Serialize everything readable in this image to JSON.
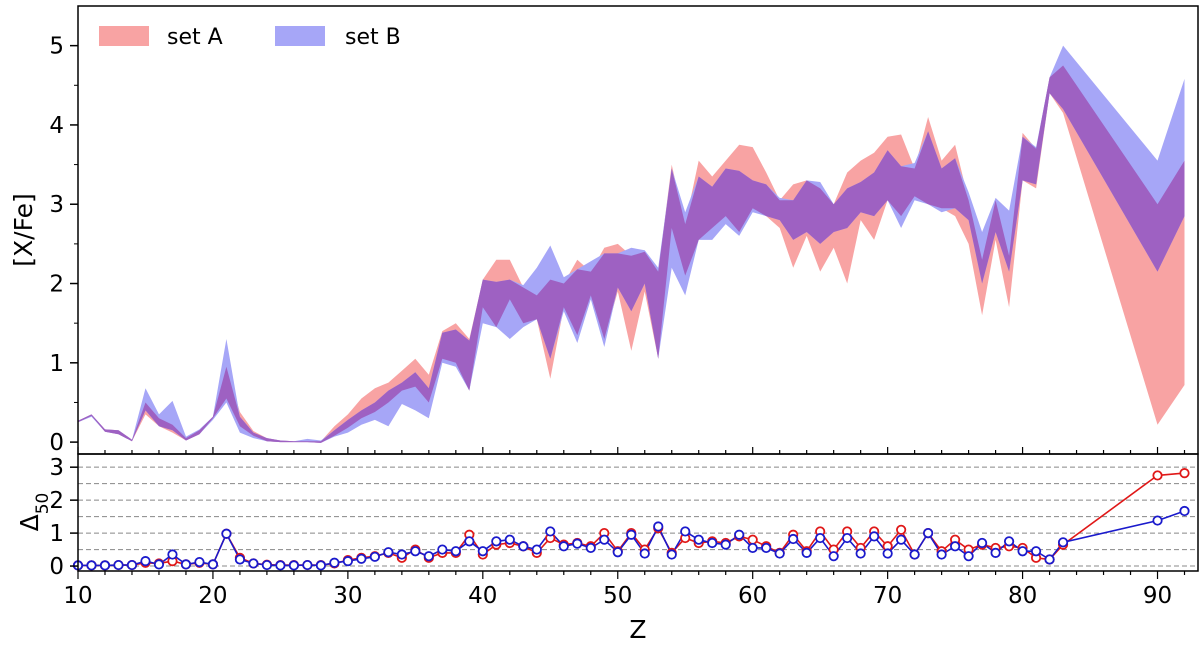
{
  "chart_data": [
    {
      "type": "area",
      "panel": "top",
      "ylabel": "[X/Fe]",
      "xlim": [
        10,
        93
      ],
      "ylim": [
        -0.15,
        5.5
      ],
      "yticks": [
        "0",
        "1",
        "2",
        "3",
        "4",
        "5"
      ],
      "legend_position": "top-left",
      "legend": [
        {
          "name": "set A",
          "color": "#f8a3a3"
        },
        {
          "name": "set B",
          "color": "#a6a6f7"
        }
      ],
      "overlap_color": "#9e61c2",
      "series": [
        {
          "name": "set A",
          "color": "#f8a3a3",
          "x": [
            10,
            11,
            12,
            13,
            14,
            15,
            16,
            17,
            18,
            19,
            20,
            21,
            22,
            23,
            24,
            25,
            26,
            27,
            28,
            29,
            30,
            31,
            32,
            33,
            34,
            35,
            36,
            37,
            38,
            39,
            40,
            41,
            42,
            43,
            44,
            45,
            46,
            47,
            48,
            49,
            50,
            51,
            52,
            53,
            54,
            55,
            56,
            57,
            58,
            59,
            60,
            61,
            62,
            63,
            64,
            65,
            66,
            67,
            68,
            69,
            70,
            71,
            72,
            73,
            74,
            75,
            76,
            77,
            78,
            79,
            80,
            81,
            82,
            83,
            90,
            92
          ],
          "lower": [
            0.25,
            0.33,
            0.13,
            0.1,
            0.01,
            0.35,
            0.2,
            0.12,
            0.02,
            0.1,
            0.3,
            0.55,
            0.2,
            0.08,
            0.01,
            0.0,
            0.0,
            0.0,
            -0.01,
            0.08,
            0.18,
            0.3,
            0.38,
            0.5,
            0.65,
            0.7,
            0.5,
            1.05,
            1.0,
            0.65,
            1.7,
            1.45,
            1.8,
            1.5,
            1.55,
            0.8,
            1.7,
            1.35,
            1.85,
            1.3,
            1.9,
            1.15,
            1.9,
            1.05,
            2.7,
            2.1,
            2.55,
            2.7,
            2.85,
            2.65,
            2.95,
            2.85,
            2.7,
            2.2,
            2.6,
            2.15,
            2.45,
            2.0,
            2.8,
            2.55,
            3.05,
            2.85,
            3.1,
            3.0,
            2.95,
            2.85,
            2.5,
            1.6,
            2.55,
            1.7,
            3.3,
            3.2,
            4.4,
            4.15,
            0.22,
            0.72
          ],
          "upper": [
            0.27,
            0.35,
            0.16,
            0.15,
            0.03,
            0.5,
            0.3,
            0.22,
            0.05,
            0.15,
            0.32,
            0.95,
            0.38,
            0.14,
            0.05,
            0.02,
            0.01,
            0.01,
            0.01,
            0.2,
            0.35,
            0.55,
            0.68,
            0.75,
            0.9,
            1.05,
            0.85,
            1.4,
            1.5,
            1.3,
            2.05,
            2.3,
            2.3,
            1.95,
            1.85,
            2.05,
            2.0,
            2.3,
            2.15,
            2.45,
            2.5,
            2.35,
            2.4,
            2.15,
            3.5,
            2.75,
            3.55,
            3.35,
            3.55,
            3.75,
            3.72,
            3.4,
            3.05,
            3.25,
            3.3,
            3.2,
            3.0,
            3.4,
            3.55,
            3.65,
            3.85,
            3.88,
            3.45,
            4.1,
            3.55,
            3.75,
            3.05,
            2.3,
            3.05,
            2.35,
            3.9,
            3.7,
            4.6,
            4.75,
            3.0,
            3.55
          ]
        },
        {
          "name": "set B",
          "color": "#a6a6f7",
          "x": [
            10,
            11,
            12,
            13,
            14,
            15,
            16,
            17,
            18,
            19,
            20,
            21,
            22,
            23,
            24,
            25,
            26,
            27,
            28,
            29,
            30,
            31,
            32,
            33,
            34,
            35,
            36,
            37,
            38,
            39,
            40,
            41,
            42,
            43,
            44,
            45,
            46,
            47,
            48,
            49,
            50,
            51,
            52,
            53,
            54,
            55,
            56,
            57,
            58,
            59,
            60,
            61,
            62,
            63,
            64,
            65,
            66,
            67,
            68,
            69,
            70,
            71,
            72,
            73,
            74,
            75,
            76,
            77,
            78,
            79,
            80,
            81,
            82,
            83,
            90,
            92
          ],
          "lower": [
            0.25,
            0.32,
            0.13,
            0.1,
            0.01,
            0.4,
            0.2,
            0.15,
            0.02,
            0.1,
            0.28,
            0.5,
            0.12,
            0.05,
            0.01,
            0.0,
            0.0,
            0.0,
            -0.01,
            0.07,
            0.12,
            0.22,
            0.28,
            0.2,
            0.48,
            0.4,
            0.3,
            1.0,
            0.95,
            0.65,
            1.5,
            1.45,
            1.3,
            1.45,
            1.55,
            1.05,
            1.65,
            1.25,
            1.8,
            1.2,
            1.95,
            1.65,
            2.0,
            1.05,
            2.2,
            1.85,
            2.55,
            2.55,
            2.75,
            2.6,
            2.9,
            2.85,
            2.8,
            2.55,
            2.65,
            2.5,
            2.65,
            2.7,
            2.9,
            2.85,
            3.05,
            2.7,
            3.05,
            3.0,
            2.9,
            2.95,
            2.8,
            2.0,
            2.65,
            2.15,
            3.3,
            3.25,
            4.4,
            4.2,
            2.15,
            2.85
          ],
          "upper": [
            0.27,
            0.35,
            0.16,
            0.15,
            0.03,
            0.68,
            0.35,
            0.52,
            0.07,
            0.16,
            0.32,
            1.3,
            0.32,
            0.12,
            0.05,
            0.02,
            0.01,
            0.04,
            0.02,
            0.15,
            0.28,
            0.4,
            0.5,
            0.65,
            0.75,
            0.88,
            0.68,
            1.38,
            1.42,
            1.28,
            2.05,
            2.02,
            2.05,
            1.98,
            2.2,
            2.48,
            2.08,
            2.18,
            2.28,
            2.38,
            2.38,
            2.45,
            2.42,
            2.2,
            3.45,
            2.9,
            3.35,
            3.22,
            3.45,
            3.42,
            3.3,
            3.25,
            3.08,
            3.05,
            3.3,
            3.28,
            3.0,
            3.2,
            3.28,
            3.4,
            3.68,
            3.48,
            3.52,
            3.92,
            3.45,
            3.58,
            3.15,
            2.65,
            3.08,
            2.92,
            3.85,
            3.72,
            4.6,
            5.0,
            3.55,
            4.58
          ]
        }
      ]
    },
    {
      "type": "line",
      "panel": "bottom",
      "xlabel": "Z",
      "ylabel": "Δ50",
      "xlim": [
        10,
        93
      ],
      "ylim": [
        -0.15,
        3.4
      ],
      "yticks": [
        "0",
        "1",
        "2",
        "3"
      ],
      "xticks": [
        "10",
        "20",
        "30",
        "40",
        "50",
        "60",
        "70",
        "80",
        "90"
      ],
      "gridlines_y": [
        0,
        0.5,
        1,
        1.5,
        2,
        2.5,
        3
      ],
      "grid": "dashed horizontal",
      "series": [
        {
          "name": "set A",
          "color": "#e01818",
          "x": [
            10,
            11,
            12,
            13,
            14,
            15,
            16,
            17,
            18,
            19,
            20,
            21,
            22,
            23,
            24,
            25,
            26,
            27,
            28,
            29,
            30,
            31,
            32,
            33,
            34,
            35,
            36,
            37,
            38,
            39,
            40,
            41,
            42,
            43,
            44,
            45,
            46,
            47,
            48,
            49,
            50,
            51,
            52,
            53,
            54,
            55,
            56,
            57,
            58,
            59,
            60,
            61,
            62,
            63,
            64,
            65,
            66,
            67,
            68,
            69,
            70,
            71,
            72,
            73,
            74,
            75,
            76,
            77,
            78,
            79,
            80,
            81,
            82,
            83,
            90,
            92
          ],
          "y": [
            0.02,
            0.02,
            0.02,
            0.03,
            0.03,
            0.1,
            0.08,
            0.15,
            0.05,
            0.1,
            0.05,
            0.98,
            0.25,
            0.08,
            0.04,
            0.03,
            0.03,
            0.03,
            0.03,
            0.08,
            0.18,
            0.25,
            0.3,
            0.4,
            0.25,
            0.5,
            0.25,
            0.4,
            0.4,
            0.95,
            0.35,
            0.65,
            0.7,
            0.6,
            0.4,
            0.85,
            0.65,
            0.7,
            0.6,
            1.0,
            0.45,
            1.0,
            0.5,
            1.15,
            0.4,
            0.85,
            0.7,
            0.75,
            0.7,
            0.9,
            0.8,
            0.6,
            0.4,
            0.95,
            0.45,
            1.05,
            0.5,
            1.05,
            0.55,
            1.05,
            0.6,
            1.1,
            0.35,
            1.0,
            0.45,
            0.8,
            0.5,
            0.65,
            0.55,
            0.6,
            0.55,
            0.25,
            0.2,
            0.65,
            2.75,
            2.82
          ]
        },
        {
          "name": "set B",
          "color": "#1a1acc",
          "x": [
            10,
            11,
            12,
            13,
            14,
            15,
            16,
            17,
            18,
            19,
            20,
            21,
            22,
            23,
            24,
            25,
            26,
            27,
            28,
            29,
            30,
            31,
            32,
            33,
            34,
            35,
            36,
            37,
            38,
            39,
            40,
            41,
            42,
            43,
            44,
            45,
            46,
            47,
            48,
            49,
            50,
            51,
            52,
            53,
            54,
            55,
            56,
            57,
            58,
            59,
            60,
            61,
            62,
            63,
            64,
            65,
            66,
            67,
            68,
            69,
            70,
            71,
            72,
            73,
            74,
            75,
            76,
            77,
            78,
            79,
            80,
            81,
            82,
            83,
            90,
            92
          ],
          "y": [
            0.02,
            0.02,
            0.02,
            0.03,
            0.03,
            0.15,
            0.05,
            0.35,
            0.05,
            0.12,
            0.05,
            0.98,
            0.2,
            0.08,
            0.03,
            0.02,
            0.02,
            0.03,
            0.02,
            0.1,
            0.15,
            0.22,
            0.28,
            0.42,
            0.35,
            0.45,
            0.3,
            0.5,
            0.45,
            0.75,
            0.45,
            0.75,
            0.8,
            0.6,
            0.5,
            1.05,
            0.6,
            0.68,
            0.55,
            0.8,
            0.42,
            0.95,
            0.38,
            1.2,
            0.35,
            1.05,
            0.8,
            0.7,
            0.65,
            0.95,
            0.55,
            0.55,
            0.38,
            0.82,
            0.4,
            0.85,
            0.3,
            0.85,
            0.38,
            0.9,
            0.38,
            0.8,
            0.35,
            1.0,
            0.35,
            0.6,
            0.3,
            0.7,
            0.4,
            0.75,
            0.45,
            0.45,
            0.2,
            0.72,
            1.38,
            1.67
          ]
        }
      ]
    }
  ]
}
